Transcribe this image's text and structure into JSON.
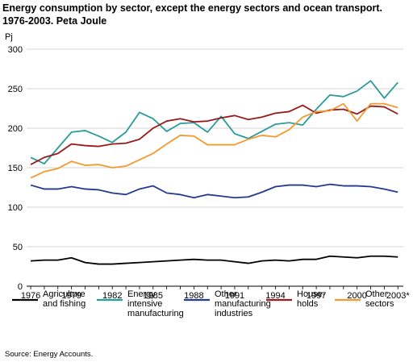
{
  "title": "Energy consumption by sector, except the energy sectors and ocean transport. 1976-2003. Peta Joule",
  "source": "Source: Energy Accounts.",
  "chart_data": {
    "type": "line",
    "ylabel": "Pj",
    "ylim": [
      0,
      300
    ],
    "yticks": [
      0,
      50,
      100,
      150,
      200,
      250,
      300
    ],
    "x": [
      1976,
      1977,
      1978,
      1979,
      1980,
      1981,
      1982,
      1983,
      1984,
      1985,
      1986,
      1987,
      1988,
      1989,
      1990,
      1991,
      1992,
      1993,
      1994,
      1995,
      1996,
      1997,
      1998,
      1999,
      2000,
      2001,
      2002,
      2003
    ],
    "xtick_labels": [
      "1976",
      "1979",
      "1982",
      "1985",
      "1988",
      "1991",
      "1994",
      "1997",
      "2000",
      "2003*"
    ],
    "xtick_values": [
      1976,
      1979,
      1982,
      1985,
      1988,
      1991,
      1994,
      1997,
      2000,
      2003
    ],
    "grid": "horizontal",
    "legend_position": "bottom",
    "series": [
      {
        "name": "Agriculture and fishing",
        "legend_lines": [
          "Agriculture",
          "and fishing"
        ],
        "color": "#000000",
        "values": [
          32,
          33,
          33,
          36,
          30,
          28,
          28,
          29,
          30,
          31,
          32,
          33,
          34,
          33,
          33,
          31,
          29,
          32,
          33,
          32,
          34,
          34,
          38,
          37,
          36,
          38,
          38,
          37
        ]
      },
      {
        "name": "Energy intensive manufacturing",
        "legend_lines": [
          "Energy",
          "intensive",
          "manufacturing"
        ],
        "color": "#2a9b9b",
        "values": [
          163,
          155,
          175,
          195,
          197,
          190,
          182,
          195,
          220,
          212,
          196,
          206,
          207,
          195,
          215,
          193,
          187,
          196,
          205,
          207,
          204,
          224,
          242,
          240,
          247,
          260,
          238,
          258
        ]
      },
      {
        "name": "Other manufacturing industries",
        "legend_lines": [
          "Other",
          "manufacturing",
          "industries"
        ],
        "color": "#223a8f",
        "values": [
          128,
          123,
          123,
          126,
          123,
          122,
          118,
          116,
          123,
          127,
          118,
          116,
          112,
          116,
          114,
          112,
          113,
          119,
          126,
          128,
          128,
          126,
          129,
          127,
          127,
          126,
          123,
          119
        ]
      },
      {
        "name": "House-holds",
        "legend_lines": [
          "House-",
          "holds"
        ],
        "color": "#9a1a1a",
        "values": [
          154,
          163,
          168,
          180,
          178,
          177,
          180,
          181,
          186,
          200,
          209,
          212,
          208,
          209,
          213,
          216,
          211,
          214,
          219,
          221,
          229,
          219,
          223,
          224,
          218,
          228,
          227,
          218
        ]
      },
      {
        "name": "Other sectors",
        "legend_lines": [
          "Other",
          "sectors"
        ],
        "color": "#f39a2e",
        "values": [
          137,
          145,
          149,
          158,
          153,
          154,
          150,
          152,
          160,
          168,
          180,
          191,
          190,
          179,
          179,
          179,
          186,
          191,
          189,
          198,
          214,
          221,
          222,
          231,
          209,
          231,
          231,
          226
        ]
      }
    ]
  }
}
